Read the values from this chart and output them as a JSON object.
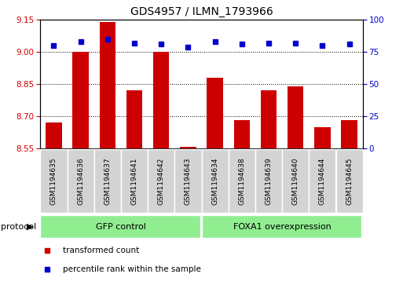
{
  "title": "GDS4957 / ILMN_1793966",
  "samples": [
    "GSM1194635",
    "GSM1194636",
    "GSM1194637",
    "GSM1194641",
    "GSM1194642",
    "GSM1194643",
    "GSM1194634",
    "GSM1194638",
    "GSM1194639",
    "GSM1194640",
    "GSM1194644",
    "GSM1194645"
  ],
  "transformed_counts": [
    8.67,
    9.0,
    9.14,
    8.82,
    9.0,
    8.557,
    8.88,
    8.68,
    8.82,
    8.84,
    8.65,
    8.68
  ],
  "percentile_rank_values": [
    80,
    83,
    85,
    82,
    81,
    79,
    83,
    81,
    82,
    82,
    80,
    81
  ],
  "groups": [
    {
      "label": "GFP control",
      "start": 0,
      "end": 6,
      "color": "#90EE90"
    },
    {
      "label": "FOXA1 overexpression",
      "start": 6,
      "end": 12,
      "color": "#90EE90"
    }
  ],
  "ylim_left": [
    8.55,
    9.15
  ],
  "ylim_right": [
    0,
    100
  ],
  "yticks_left": [
    8.55,
    8.7,
    8.85,
    9.0,
    9.15
  ],
  "yticks_right": [
    0,
    25,
    50,
    75,
    100
  ],
  "bar_color": "#CC0000",
  "dot_color": "#0000CC",
  "bar_width": 0.6,
  "left_tick_color": "#CC0000",
  "right_tick_color": "#0000CC",
  "legend_items": [
    {
      "label": "transformed count",
      "color": "#CC0000"
    },
    {
      "label": "percentile rank within the sample",
      "color": "#0000CC"
    }
  ],
  "protocol_label": "protocol",
  "box_color": "#D3D3D3",
  "fig_width": 5.13,
  "fig_height": 3.63,
  "dpi": 100
}
